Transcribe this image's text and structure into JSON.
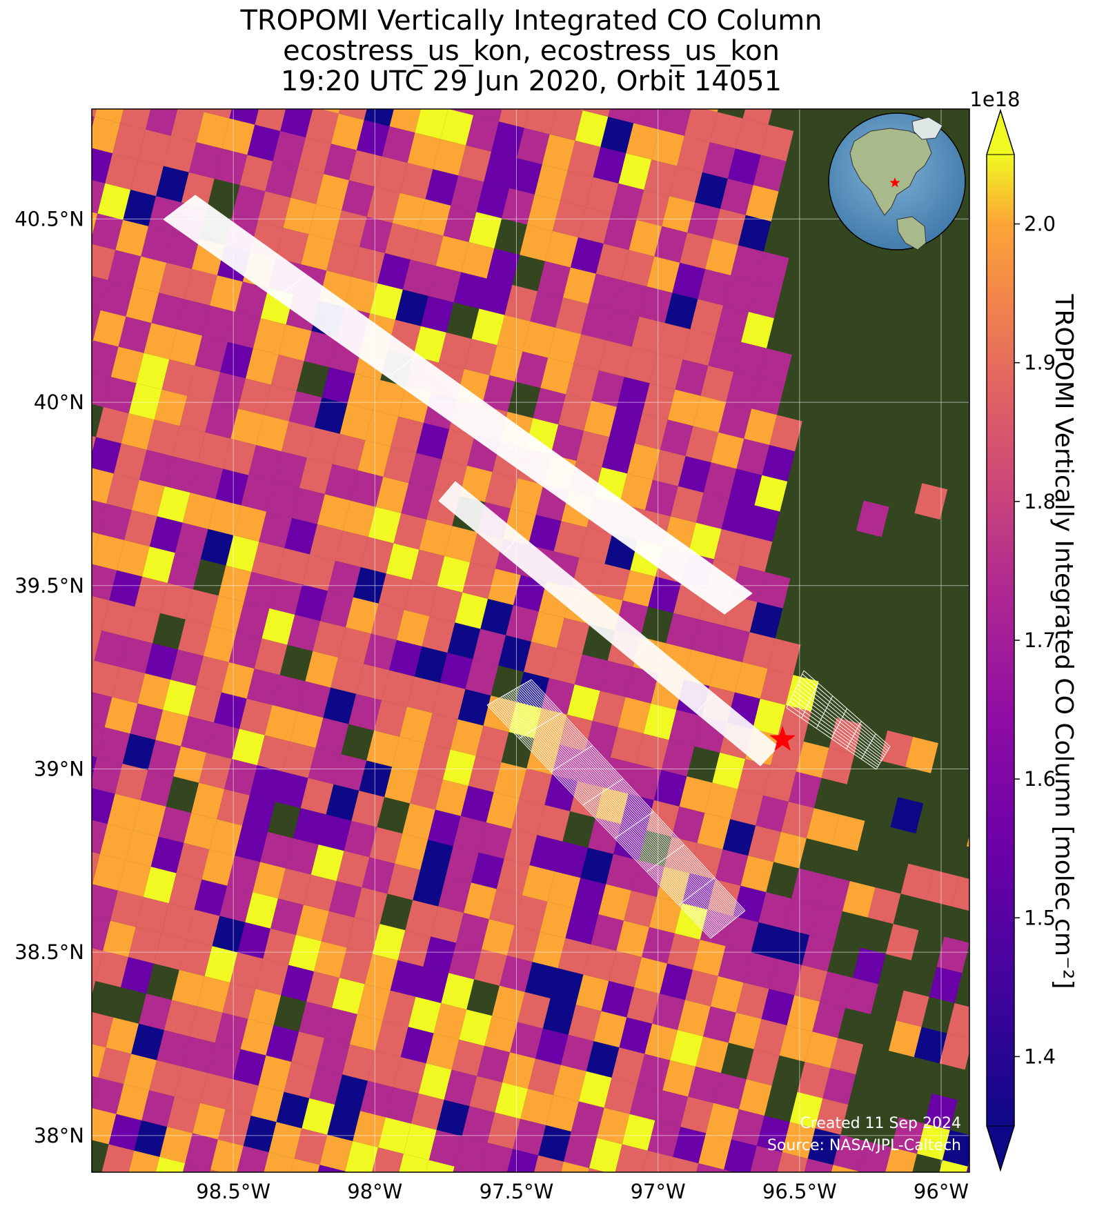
{
  "title": {
    "line1": "TROPOMI Vertically Integrated CO Column",
    "line2": "ecostress_us_kon, ecostress_us_kon",
    "line3": "19:20 UTC 29 Jun 2020, Orbit 14051"
  },
  "map": {
    "lon_range": [
      -99.0,
      -95.9
    ],
    "lat_range": [
      37.9,
      40.8
    ],
    "site": {
      "lon": -96.56,
      "lat": 39.08,
      "marker": "red-star"
    },
    "background": "satellite-imagery",
    "inset_globe": "north-america-globe-with-site-star"
  },
  "axes": {
    "x_ticks": [
      {
        "lon": -98.5,
        "label": "98.5°W"
      },
      {
        "lon": -98.0,
        "label": "98°W"
      },
      {
        "lon": -97.5,
        "label": "97.5°W"
      },
      {
        "lon": -97.0,
        "label": "97°W"
      },
      {
        "lon": -96.5,
        "label": "96.5°W"
      },
      {
        "lon": -96.0,
        "label": "96°W"
      }
    ],
    "y_ticks": [
      {
        "lat": 40.5,
        "label": "40.5°N"
      },
      {
        "lat": 40.0,
        "label": "40°N"
      },
      {
        "lat": 39.5,
        "label": "39.5°N"
      },
      {
        "lat": 39.0,
        "label": "39°N"
      },
      {
        "lat": 38.5,
        "label": "38.5°N"
      },
      {
        "lat": 38.0,
        "label": "38°N"
      }
    ],
    "grid": true
  },
  "colorbar": {
    "label": "TROPOMI Vertically Integrated CO Column [molec cm⁻²]",
    "exponent": "1e18",
    "range": [
      1.35,
      2.05
    ],
    "ticks": [
      {
        "value": 1.4,
        "label": "1.4"
      },
      {
        "value": 1.5,
        "label": "1.5"
      },
      {
        "value": 1.6,
        "label": "1.6"
      },
      {
        "value": 1.7,
        "label": "1.7"
      },
      {
        "value": 1.8,
        "label": "1.8"
      },
      {
        "value": 1.9,
        "label": "1.9"
      },
      {
        "value": 2.0,
        "label": "2.0"
      }
    ],
    "colormap": "plasma",
    "colors": [
      "#0d0887",
      "#6a00a8",
      "#b12a90",
      "#e16462",
      "#fca636",
      "#f0f921"
    ]
  },
  "credits": {
    "created": "Created 11 Sep 2024",
    "source": "Source: NASA/JPL-Caltech"
  }
}
